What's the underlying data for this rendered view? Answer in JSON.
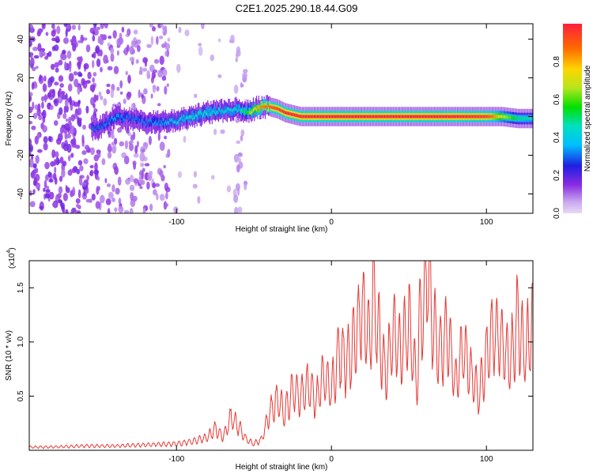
{
  "title": "C2E1.2025.290.18.44.G09",
  "chart_data": [
    {
      "type": "heatmap",
      "title": "C2E1.2025.290.18.44.G09",
      "xlabel": "Height of straight line (km)",
      "ylabel": "Frequency (Hz)",
      "xlim": [
        -195,
        130
      ],
      "ylim": [
        -50,
        48
      ],
      "x_ticks": [
        -100,
        0,
        100
      ],
      "x_tick_labels": [
        "-100",
        "0",
        "100"
      ],
      "y_ticks": [
        -40,
        -20,
        0,
        20,
        40
      ],
      "y_tick_labels": [
        "-40",
        "-20",
        "0",
        "20",
        "40"
      ],
      "colorbar": {
        "label": "Normalized spectral amplitude",
        "range": [
          0,
          1
        ],
        "ticks": [
          0.0,
          0.2,
          0.4,
          0.6,
          0.8
        ],
        "tick_labels": [
          "0.0",
          "0.2",
          "0.4",
          "0.6",
          "0.8"
        ]
      },
      "ridge": {
        "x": [
          -150,
          -140,
          -130,
          -120,
          -110,
          -100,
          -90,
          -80,
          -70,
          -60,
          -55,
          -50,
          -45,
          -40,
          -35,
          -30,
          -25,
          -20,
          -10,
          0,
          20,
          40,
          60,
          80,
          100,
          110,
          120,
          130
        ],
        "frequency": [
          -6,
          0,
          -1,
          -3,
          -3,
          -2,
          0,
          2,
          3,
          4,
          2,
          4,
          5,
          5,
          4,
          2,
          1,
          0,
          0,
          0,
          0,
          0,
          0,
          0,
          0,
          0,
          -1,
          -1
        ],
        "amplitude": [
          0.3,
          0.35,
          0.3,
          0.32,
          0.35,
          0.4,
          0.45,
          0.45,
          0.42,
          0.45,
          0.55,
          0.75,
          0.85,
          0.9,
          0.95,
          1.0,
          1.0,
          1.0,
          1.0,
          1.0,
          1.0,
          1.0,
          1.0,
          1.0,
          0.95,
          0.7,
          0.5,
          0.45
        ]
      }
    },
    {
      "type": "line",
      "xlabel": "Height of straight line (km)",
      "ylabel": "SNR (10 * v/v)",
      "y_exponent_label": "(x10",
      "y_exponent_power": "4",
      "xlim": [
        -195,
        130
      ],
      "ylim": [
        0,
        1.75
      ],
      "x_ticks": [
        -100,
        0,
        100
      ],
      "x_tick_labels": [
        "-100",
        "0",
        "100"
      ],
      "y_ticks": [
        0.5,
        1.0,
        1.5
      ],
      "y_tick_labels": [
        "0.5",
        "1.0",
        "1.5"
      ],
      "series": [
        {
          "name": "SNR",
          "color": "#e53935",
          "x": [
            -195,
            -180,
            -160,
            -140,
            -120,
            -100,
            -90,
            -80,
            -75,
            -70,
            -65,
            -60,
            -55,
            -50,
            -45,
            -40,
            -35,
            -30,
            -25,
            -20,
            -15,
            -10,
            -5,
            0,
            5,
            10,
            15,
            20,
            25,
            27,
            30,
            35,
            40,
            45,
            50,
            55,
            57,
            60,
            62,
            65,
            70,
            75,
            80,
            85,
            90,
            95,
            100,
            105,
            110,
            115,
            120,
            125,
            130
          ],
          "y": [
            0.03,
            0.03,
            0.04,
            0.04,
            0.05,
            0.06,
            0.08,
            0.12,
            0.2,
            0.12,
            0.3,
            0.22,
            0.1,
            0.06,
            0.1,
            0.35,
            0.45,
            0.35,
            0.55,
            0.5,
            0.6,
            0.45,
            0.7,
            0.55,
            0.9,
            0.8,
            1.0,
            1.3,
            1.0,
            1.45,
            1.1,
            0.7,
            1.1,
            0.9,
            1.2,
            0.6,
            1.2,
            1.35,
            1.75,
            1.2,
            0.9,
            1.1,
            0.6,
            0.95,
            0.7,
            0.5,
            0.85,
            1.1,
            1.0,
            0.8,
            1.2,
            0.9,
            1.2
          ]
        }
      ]
    }
  ]
}
